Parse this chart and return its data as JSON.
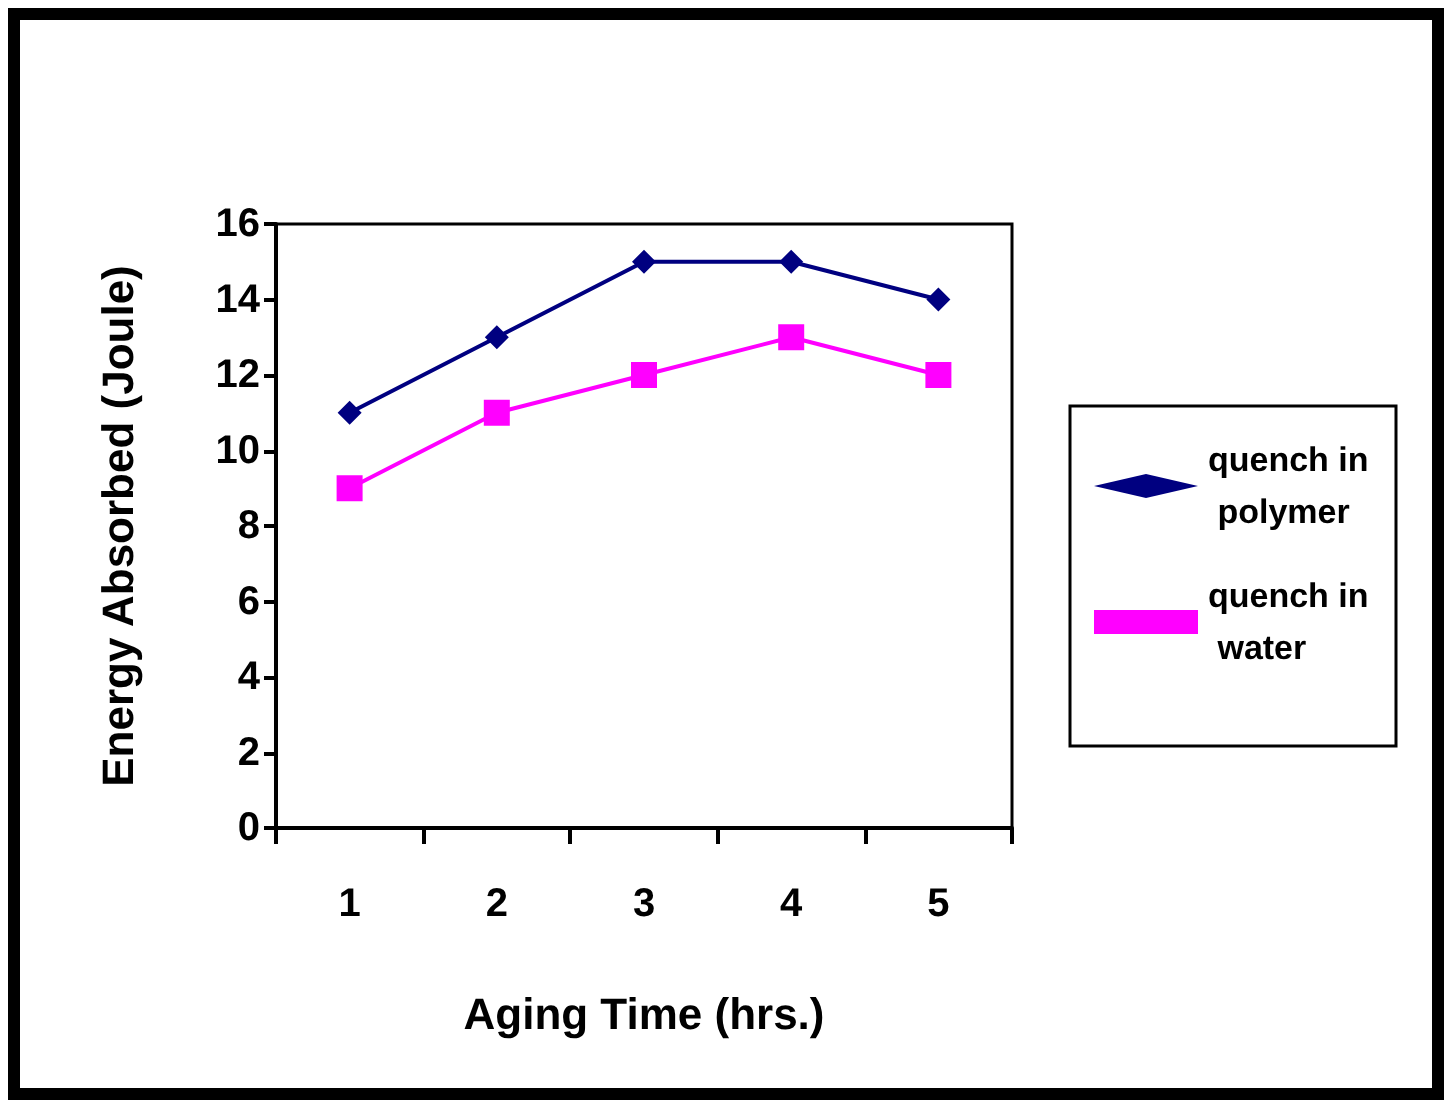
{
  "chart_data": {
    "type": "line",
    "xlabel": "Aging Time (hrs.)",
    "ylabel": "Energy Absorbed (Joule)",
    "categories": [
      "1",
      "2",
      "3",
      "4",
      "5"
    ],
    "series": [
      {
        "name": "quench in polymer",
        "color": "#000080",
        "marker": "diamond",
        "values": [
          11,
          13,
          15,
          15,
          14
        ]
      },
      {
        "name": "quench in water",
        "color": "#ff00ff",
        "marker": "square",
        "values": [
          9,
          11,
          12,
          13,
          12
        ]
      }
    ],
    "ylim": [
      0,
      16
    ],
    "yticks": [
      0,
      2,
      4,
      6,
      8,
      10,
      12,
      14,
      16
    ],
    "grid": false,
    "legend": "right",
    "line_style": "solid"
  }
}
